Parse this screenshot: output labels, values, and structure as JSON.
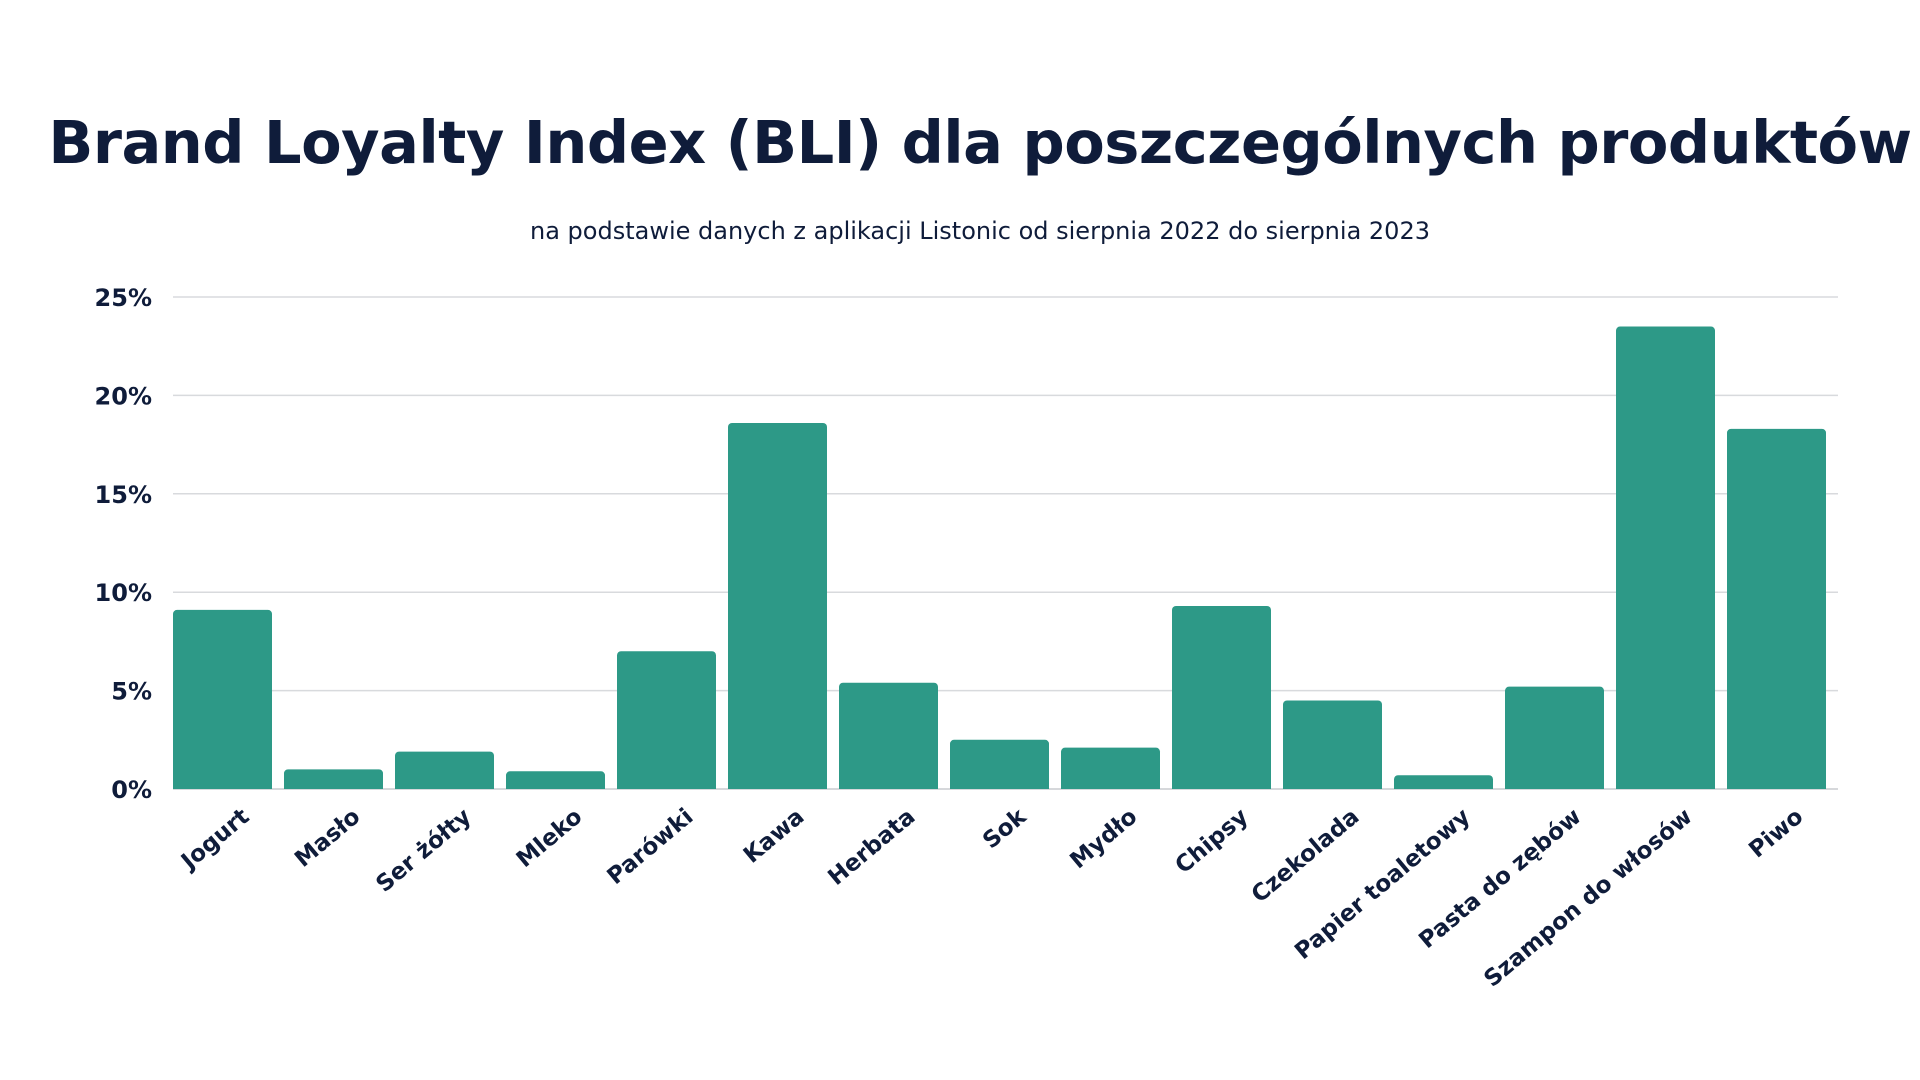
{
  "chart_data": {
    "type": "bar",
    "title": "Brand Loyalty Index (BLI) dla poszczególnych produktów",
    "subtitle": "na podstawie danych z aplikacji Listonic od sierpnia 2022 do sierpnia 2023",
    "xlabel": "",
    "ylabel": "",
    "categories": [
      "Jogurt",
      "Masło",
      "Ser żółty",
      "Mleko",
      "Parówki",
      "Kawa",
      "Herbata",
      "Sok",
      "Mydło",
      "Chipsy",
      "Czekolada",
      "Papier toaletowy",
      "Pasta do zębów",
      "Szampon do włosów",
      "Piwo"
    ],
    "values": [
      9.1,
      1.0,
      1.9,
      0.9,
      7.0,
      18.6,
      5.4,
      2.5,
      2.1,
      9.3,
      4.5,
      0.7,
      5.2,
      23.5,
      18.3
    ],
    "ylim": [
      0,
      25
    ],
    "yticks": [
      0,
      5,
      10,
      15,
      20,
      25
    ],
    "ytick_labels": [
      "0%",
      "5%",
      "10%",
      "15%",
      "20%",
      "25%"
    ],
    "grid": true,
    "legend": "none",
    "bar_color": "#2d9987"
  }
}
